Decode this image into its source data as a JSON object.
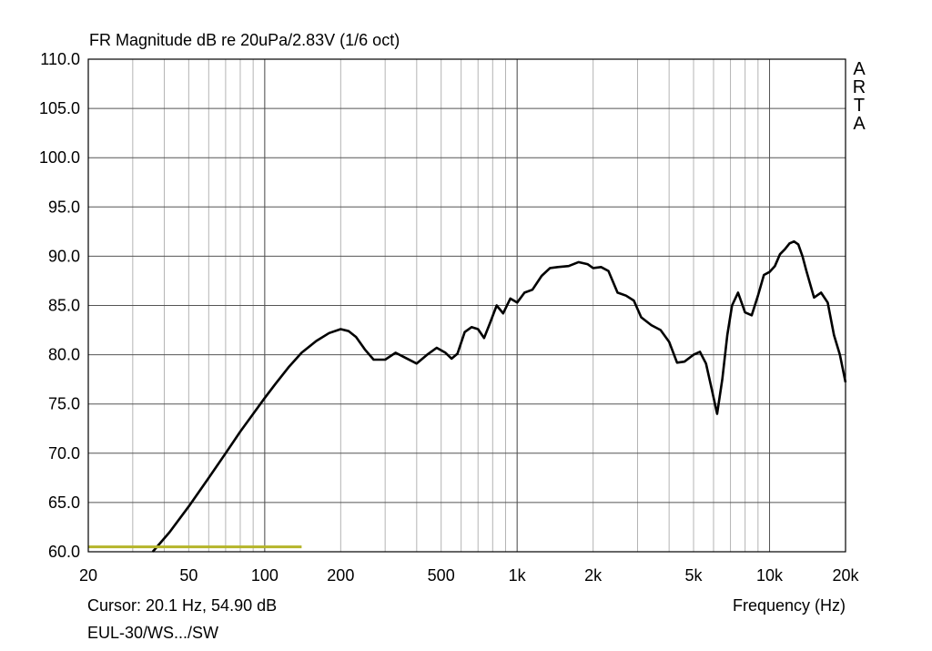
{
  "chart_data": {
    "type": "line",
    "title": "FR Magnitude dB re 20uPa/2.83V (1/6 oct)",
    "xlabel": "Frequency (Hz)",
    "ylabel": "",
    "x_scale": "log",
    "xlim": [
      20,
      20000
    ],
    "ylim": [
      60,
      110
    ],
    "grid": true,
    "x_ticks": [
      20,
      50,
      100,
      200,
      500,
      1000,
      2000,
      5000,
      10000,
      20000
    ],
    "x_tick_labels": [
      "20",
      "50",
      "100",
      "200",
      "500",
      "1k",
      "2k",
      "5k",
      "10k",
      "20k"
    ],
    "y_ticks": [
      60,
      65,
      70,
      75,
      80,
      85,
      90,
      95,
      100,
      105,
      110
    ],
    "y_tick_labels": [
      "60.0",
      "65.0",
      "70.0",
      "75.0",
      "80.0",
      "85.0",
      "90.0",
      "95.0",
      "100.0",
      "105.0",
      "110.0"
    ],
    "series": [
      {
        "color": "#000000",
        "x": [
          36,
          42,
          50,
          60,
          70,
          80,
          90,
          100,
          110,
          125,
          140,
          160,
          180,
          200,
          215,
          230,
          250,
          270,
          300,
          330,
          360,
          400,
          440,
          480,
          520,
          550,
          580,
          620,
          660,
          700,
          740,
          780,
          830,
          880,
          940,
          1000,
          1070,
          1150,
          1250,
          1350,
          1450,
          1600,
          1750,
          1900,
          2000,
          2150,
          2300,
          2500,
          2700,
          2900,
          3100,
          3400,
          3700,
          4000,
          4300,
          4600,
          5000,
          5300,
          5600,
          5900,
          6200,
          6500,
          6800,
          7100,
          7500,
          8000,
          8500,
          9000,
          9500,
          10000,
          10500,
          11000,
          11500,
          12000,
          12500,
          13000,
          13500,
          14000,
          15000,
          16000,
          17000,
          18000,
          19000,
          20000
        ],
        "y": [
          60.0,
          62.0,
          64.6,
          67.5,
          70.0,
          72.2,
          74.0,
          75.6,
          77.0,
          78.8,
          80.2,
          81.4,
          82.2,
          82.6,
          82.4,
          81.8,
          80.5,
          79.5,
          79.5,
          80.2,
          79.7,
          79.1,
          80.0,
          80.7,
          80.2,
          79.6,
          80.1,
          82.3,
          82.8,
          82.6,
          81.7,
          83.2,
          85.0,
          84.2,
          85.7,
          85.3,
          86.3,
          86.6,
          88.0,
          88.8,
          88.9,
          89.0,
          89.4,
          89.2,
          88.8,
          88.9,
          88.5,
          86.3,
          86.0,
          85.5,
          83.8,
          83.0,
          82.5,
          81.3,
          79.2,
          79.3,
          80.0,
          80.3,
          79.1,
          76.5,
          74.0,
          77.5,
          82.0,
          85.0,
          86.3,
          84.3,
          84.0,
          86.0,
          88.1,
          88.4,
          89.0,
          90.2,
          90.7,
          91.3,
          91.5,
          91.2,
          90.0,
          88.5,
          85.8,
          86.3,
          85.3,
          82.0,
          80.0,
          77.2
        ]
      },
      {
        "color": "#b5b52a",
        "x": [
          20,
          140
        ],
        "y": [
          60.5,
          60.5
        ]
      }
    ]
  },
  "readouts": {
    "cursor": "Cursor: 20.1 Hz, 54.90 dB",
    "dataset": "EUL-30/WS.../SW"
  },
  "logo": [
    "A",
    "R",
    "T",
    "A"
  ]
}
